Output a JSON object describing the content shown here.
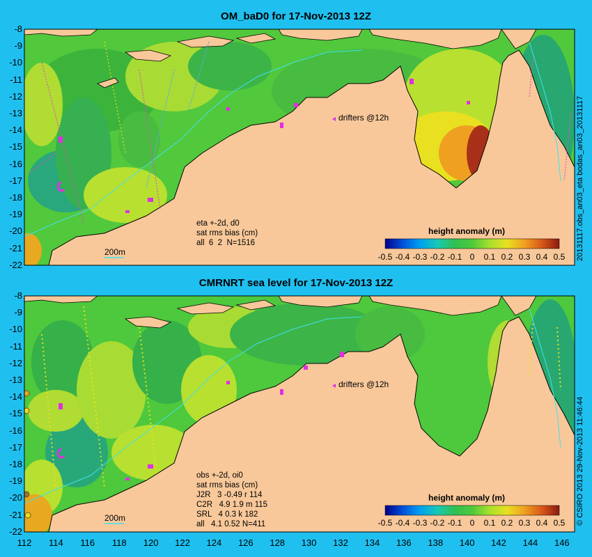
{
  "panels": [
    {
      "title": "OM_baD0 for 17-Nov-2013 12Z",
      "side_label": "20131117.obs_an03_eta     bodas_an03_20131117",
      "info": "eta +-2d, d0\nsat rms bias (cm)\nall  6  2  N=1516",
      "scale_label": "200m",
      "drifters_label": "drifters @12h"
    },
    {
      "title": "CMRNRT sea level  for 17-Nov-2013 12Z",
      "side_label": "© CSIRO 2013   29-Nov-2013 11:46:44",
      "info": "obs +-2d, oi0\nsat rms bias (cm)\nJ2R   3 -0.49 r 114\nC2R   4.9 1.9 m 115\nSRL   4 0.3 k 182\nall   4.1 0.52 N=411",
      "scale_label": "200m",
      "drifters_label": "drifters @12h"
    }
  ],
  "colorbar": {
    "title": "height anomaly (m)",
    "ticks": [
      "-0.5",
      "-0.4",
      "-0.3",
      "-0.2",
      "-0.1",
      "0",
      "0.1",
      "0.2",
      "0.3",
      "0.4",
      "0.5"
    ],
    "colors": [
      "#00008b",
      "#0050d8",
      "#00a0f0",
      "#18c8b4",
      "#30c050",
      "#4ec83c",
      "#a8e02c",
      "#e8e020",
      "#f0a020",
      "#d85818",
      "#8b1a10"
    ]
  },
  "lat_ticks": [
    "-8",
    "-9",
    "-10",
    "-11",
    "-12",
    "-13",
    "-14",
    "-15",
    "-16",
    "-17",
    "-18",
    "-19",
    "-20",
    "-21",
    "-22"
  ],
  "lon_ticks": [
    "112",
    "114",
    "116",
    "118",
    "120",
    "122",
    "124",
    "126",
    "128",
    "130",
    "132",
    "134",
    "136",
    "138",
    "140",
    "142",
    "144",
    "146"
  ],
  "colors": {
    "land": "#f8c89a",
    "sea": "#40c040",
    "frame": "#1fc0f0"
  }
}
